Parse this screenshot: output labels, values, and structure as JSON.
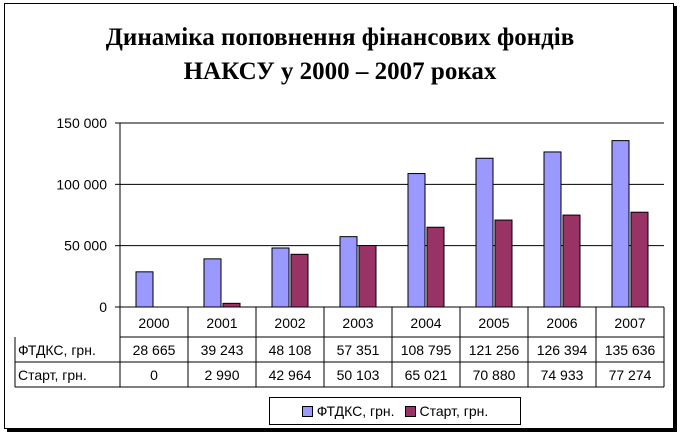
{
  "chart_data": {
    "type": "bar",
    "title_lines": [
      "Динаміка поповнення фінансових фондів",
      "НАКСУ у 2000 – 2007 роках"
    ],
    "categories": [
      "2000",
      "2001",
      "2002",
      "2003",
      "2004",
      "2005",
      "2006",
      "2007"
    ],
    "series": [
      {
        "name": "ФТДКС, грн.",
        "color": "#9999ff",
        "values": [
          28665,
          39243,
          48108,
          57351,
          108795,
          121256,
          126394,
          135636
        ],
        "labels": [
          "28 665",
          "39 243",
          "48 108",
          "57 351",
          "108 795",
          "121 256",
          "126 394",
          "135 636"
        ]
      },
      {
        "name": "Старт, грн.",
        "color": "#993366",
        "values": [
          0,
          2990,
          42964,
          50103,
          65021,
          70880,
          74933,
          77274
        ],
        "labels": [
          "0",
          "2 990",
          "42 964",
          "50 103",
          "65 021",
          "70 880",
          "74 933",
          "77 274"
        ]
      }
    ],
    "ylim": [
      0,
      150000
    ],
    "yticks": [
      0,
      50000,
      100000,
      150000
    ],
    "ytick_labels": [
      "0",
      "50 000",
      "100 000",
      "150 000"
    ],
    "grid": true,
    "data_table": true,
    "legend": "bottom"
  }
}
